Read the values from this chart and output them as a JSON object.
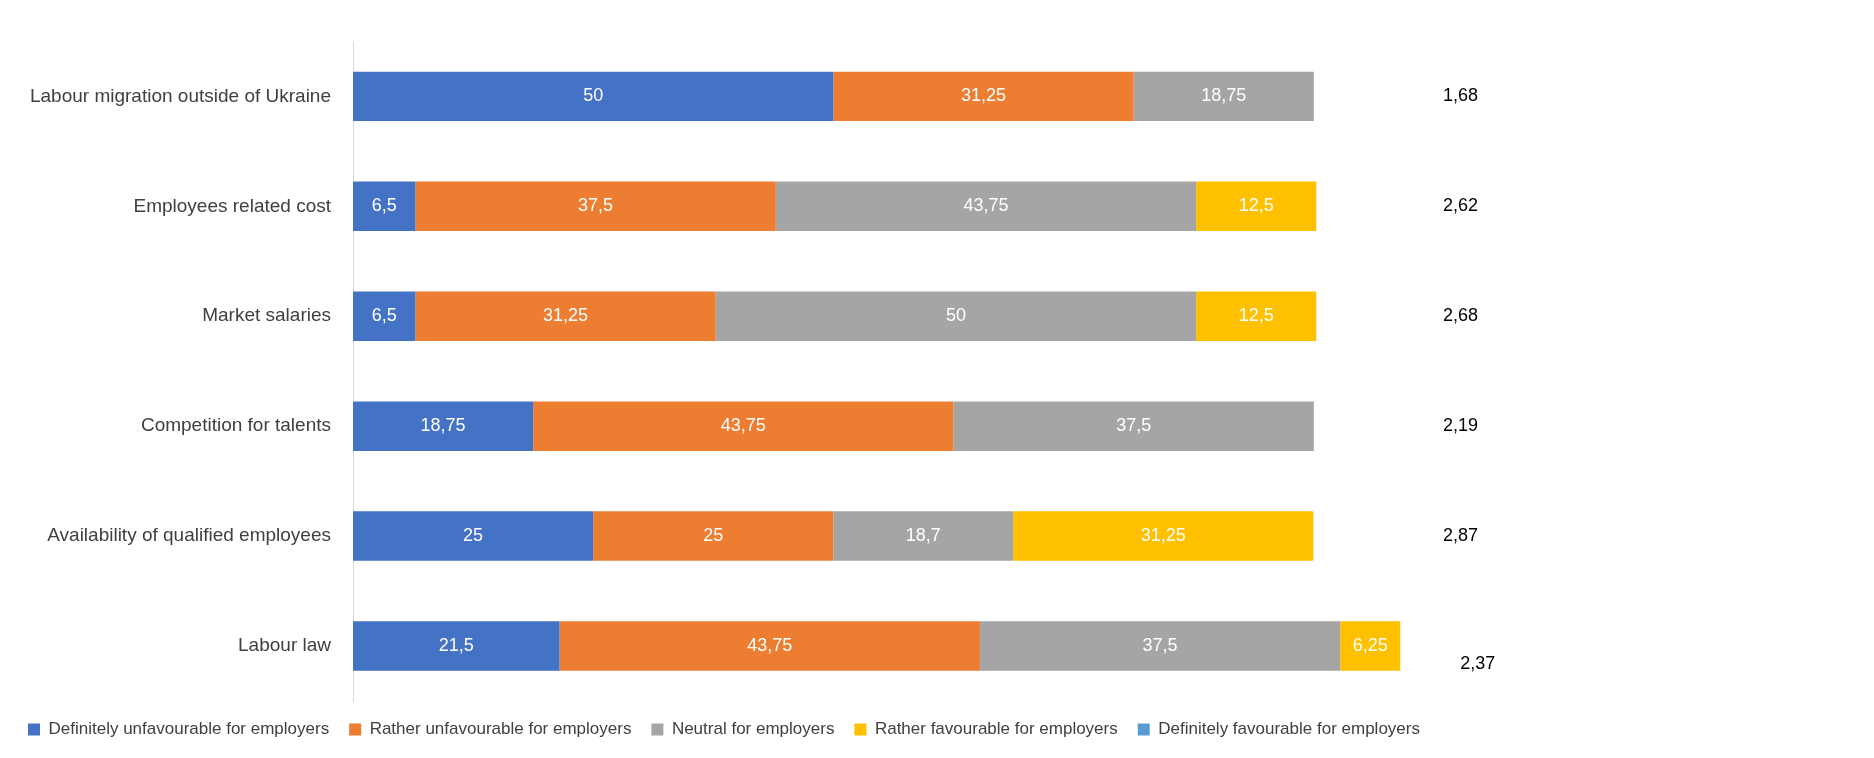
{
  "chart_data": {
    "type": "bar",
    "orientation": "horizontal",
    "stacked": true,
    "legend": "bottom",
    "grid": false,
    "categories": [
      "Labour migration outside of Ukraine",
      "Employees related cost",
      "Market salaries",
      "Competition for talents",
      "Availability of qualified employees",
      "Labour law"
    ],
    "series": [
      {
        "name": "Definitely unfavourable for employers",
        "color": "#4472c4",
        "values": [
          50,
          6.5,
          6.5,
          18.75,
          25,
          21.5
        ],
        "value_labels": [
          "50",
          "6,5",
          "6,5",
          "18,75",
          "25",
          "21,5"
        ]
      },
      {
        "name": "Rather unfavourable for employers",
        "color": "#ed7d31",
        "values": [
          31.25,
          37.5,
          31.25,
          43.75,
          25,
          43.75
        ],
        "value_labels": [
          "31,25",
          "37,5",
          "31,25",
          "43,75",
          "25",
          "43,75"
        ]
      },
      {
        "name": "Neutral for employers",
        "color": "#a5a5a5",
        "values": [
          18.75,
          43.75,
          50,
          37.5,
          18.7,
          37.5
        ],
        "value_labels": [
          "18,75",
          "43,75",
          "50",
          "37,5",
          "18,7",
          "37,5"
        ]
      },
      {
        "name": "Rather favourable for employers",
        "color": "#ffc000",
        "values": [
          null,
          12.5,
          12.5,
          null,
          31.25,
          6.25
        ],
        "value_labels": [
          null,
          "12,5",
          "12,5",
          null,
          "31,25",
          "6,25"
        ]
      },
      {
        "name": "Definitely favourable for employers",
        "color": "#5b9bd5",
        "values": [
          null,
          null,
          null,
          null,
          null,
          null
        ],
        "value_labels": [
          null,
          null,
          null,
          null,
          null,
          null
        ]
      }
    ],
    "annotations": [
      "1,68",
      "2,62",
      "2,68",
      "2,19",
      "2,87",
      "2,37"
    ]
  }
}
